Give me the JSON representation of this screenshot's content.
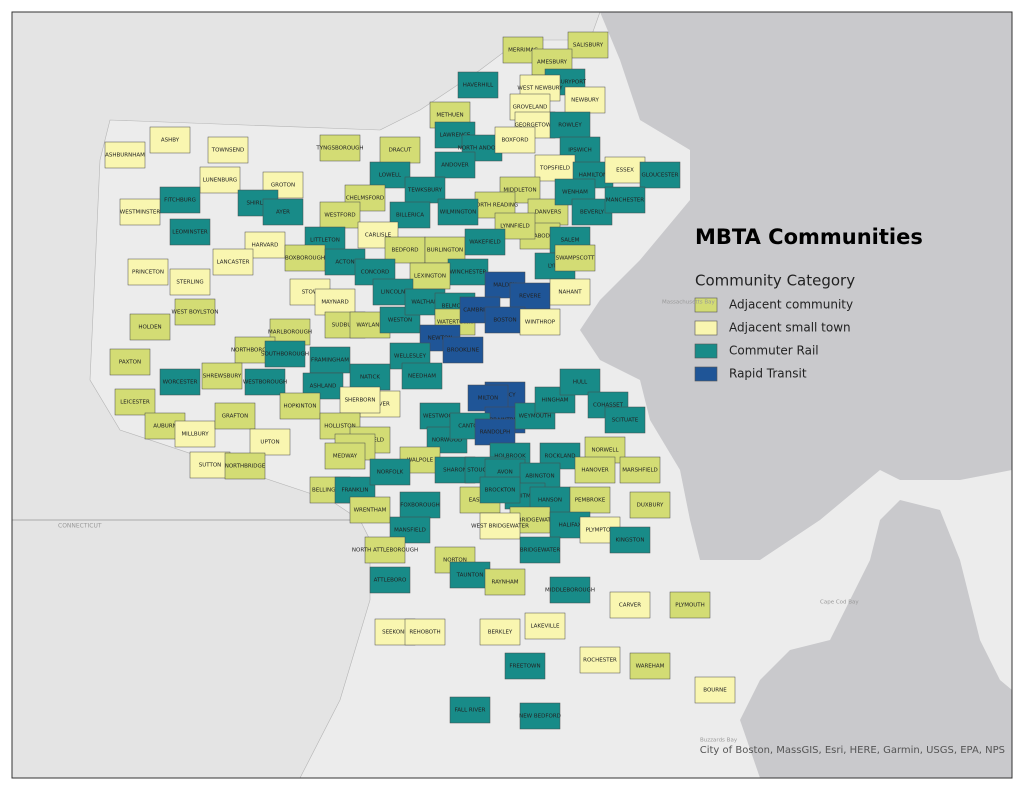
{
  "title": "MBTA Communities",
  "legend": {
    "title": "Community Category",
    "items": [
      {
        "label": "Adjacent community",
        "color": "#d3dc74"
      },
      {
        "label": "Adjacent small town",
        "color": "#f9f6b0"
      },
      {
        "label": "Commuter Rail",
        "color": "#188b88"
      },
      {
        "label": "Rapid Transit",
        "color": "#1f5597"
      }
    ]
  },
  "water_labels": [
    "Massachusetts Bay",
    "Cape Cod Bay",
    "Buzzards Bay"
  ],
  "state_label": "CONNECTICUT",
  "attribution": "City of Boston, MassGIS, Esri, HERE, Garmin, USGS, EPA, NPS",
  "towns": [
    [
      "SALISBURY",
      0
    ],
    [
      "MERRIMAC",
      0
    ],
    [
      "AMESBURY",
      0
    ],
    [
      "NEWBURYPORT",
      2
    ],
    [
      "WEST NEWBURY",
      1
    ],
    [
      "NEWBURY",
      1
    ],
    [
      "HAVERHILL",
      2
    ],
    [
      "GROVELAND",
      1
    ],
    [
      "GEORGETOWN",
      1
    ],
    [
      "ROWLEY",
      2
    ],
    [
      "METHUEN",
      0
    ],
    [
      "LAWRENCE",
      2
    ],
    [
      "NORTH ANDOVER",
      2
    ],
    [
      "BOXFORD",
      1
    ],
    [
      "IPSWICH",
      2
    ],
    [
      "DRACUT",
      0
    ],
    [
      "TYNGSBOROUGH",
      0
    ],
    [
      "ANDOVER",
      2
    ],
    [
      "TOPSFIELD",
      1
    ],
    [
      "HAMILTON",
      2
    ],
    [
      "ESSEX",
      1
    ],
    [
      "GLOUCESTER",
      2
    ],
    [
      "ASHBY",
      1
    ],
    [
      "TOWNSEND",
      1
    ],
    [
      "ASHBURNHAM",
      1
    ],
    [
      "GROTON",
      1
    ],
    [
      "LOWELL",
      2
    ],
    [
      "TEWKSBURY",
      2
    ],
    [
      "CHELMSFORD",
      0
    ],
    [
      "WESTFORD",
      0
    ],
    [
      "LUNENBURG",
      1
    ],
    [
      "FITCHBURG",
      2
    ],
    [
      "WESTMINSTER",
      1
    ],
    [
      "SHIRLEY",
      2
    ],
    [
      "AYER",
      2
    ],
    [
      "BILLERICA",
      2
    ],
    [
      "MIDDLETON",
      0
    ],
    [
      "NORTH READING",
      0
    ],
    [
      "DANVERS",
      0
    ],
    [
      "WENHAM",
      2
    ],
    [
      "BEVERLY",
      2
    ],
    [
      "MANCHESTER",
      2
    ],
    [
      "WILMINGTON",
      2
    ],
    [
      "LEOMINSTER",
      2
    ],
    [
      "LITTLETON",
      2
    ],
    [
      "CARLISLE",
      1
    ],
    [
      "HARVARD",
      1
    ],
    [
      "BOXBOROUGH",
      0
    ],
    [
      "LANCASTER",
      1
    ],
    [
      "PRINCETON",
      1
    ],
    [
      "STERLING",
      1
    ],
    [
      "BEDFORD",
      0
    ],
    [
      "BURLINGTON",
      0
    ],
    [
      "PEABODY",
      0
    ],
    [
      "LYNNFIELD",
      0
    ],
    [
      "WAKEFIELD",
      2
    ],
    [
      "SALEM",
      2
    ],
    [
      "WINCHESTER",
      2
    ],
    [
      "LEXINGTON",
      0
    ],
    [
      "ACTON",
      2
    ],
    [
      "CONCORD",
      2
    ],
    [
      "STOW",
      1
    ],
    [
      "MAYNARD",
      1
    ],
    [
      "LINCOLN",
      2
    ],
    [
      "MALDEN",
      3
    ],
    [
      "REVERE",
      3
    ],
    [
      "LYNN",
      2
    ],
    [
      "SWAMPSCOTT",
      0
    ],
    [
      "NAHANT",
      1
    ],
    [
      "WEST BOYLSTON",
      0
    ],
    [
      "HOLDEN",
      0
    ],
    [
      "SUDBURY",
      0
    ],
    [
      "WAYLAND",
      0
    ],
    [
      "WESTON",
      2
    ],
    [
      "WALTHAM",
      2
    ],
    [
      "BELMONT",
      2
    ],
    [
      "WATERTOWN",
      0
    ],
    [
      "CAMBRIDGE",
      3
    ],
    [
      "BOSTON",
      3
    ],
    [
      "WINTHROP",
      1
    ],
    [
      "MARLBOROUGH",
      0
    ],
    [
      "NEWTON",
      3
    ],
    [
      "BROOKLINE",
      3
    ],
    [
      "NORTHBOROUGH",
      0
    ],
    [
      "SOUTHBOROUGH",
      2
    ],
    [
      "FRAMINGHAM",
      2
    ],
    [
      "WELLESLEY",
      2
    ],
    [
      "NEEDHAM",
      2
    ],
    [
      "PAXTON",
      0
    ],
    [
      "WORCESTER",
      2
    ],
    [
      "SHREWSBURY",
      0
    ],
    [
      "WESTBOROUGH",
      2
    ],
    [
      "ASHLAND",
      2
    ],
    [
      "NATICK",
      2
    ],
    [
      "DOVER",
      1
    ],
    [
      "SHERBORN",
      1
    ],
    [
      "HOPKINTON",
      0
    ],
    [
      "LEICESTER",
      0
    ],
    [
      "QUINCY",
      3
    ],
    [
      "MILTON",
      3
    ],
    [
      "BRAINTREE",
      3
    ],
    [
      "WEYMOUTH",
      2
    ],
    [
      "HINGHAM",
      2
    ],
    [
      "HULL",
      2
    ],
    [
      "COHASSET",
      2
    ],
    [
      "SCITUATE",
      2
    ],
    [
      "AUBURN",
      0
    ],
    [
      "MILLBURY",
      1
    ],
    [
      "GRAFTON",
      0
    ],
    [
      "UPTON",
      1
    ],
    [
      "HOLLISTON",
      0
    ],
    [
      "MEDFIELD",
      0
    ],
    [
      "MILLIS",
      0
    ],
    [
      "WESTWOOD",
      2
    ],
    [
      "NORWOOD",
      2
    ],
    [
      "CANTON",
      2
    ],
    [
      "RANDOLPH",
      3
    ],
    [
      "HOLBROOK",
      2
    ],
    [
      "NORWELL",
      0
    ],
    [
      "ROCKLAND",
      2
    ],
    [
      "HANOVER",
      0
    ],
    [
      "MARSHFIELD",
      0
    ],
    [
      "SUTTON",
      1
    ],
    [
      "NORTHBRIDGE",
      0
    ],
    [
      "MEDWAY",
      0
    ],
    [
      "WALPOLE",
      0
    ],
    [
      "SHARON",
      2
    ],
    [
      "STOUGHTON",
      2
    ],
    [
      "AVON",
      2
    ],
    [
      "ABINGTON",
      2
    ],
    [
      "WHITMAN",
      2
    ],
    [
      "HANSON",
      2
    ],
    [
      "PEMBROKE",
      0
    ],
    [
      "DUXBURY",
      0
    ],
    [
      "BELLINGHAM",
      0
    ],
    [
      "FRANKLIN",
      2
    ],
    [
      "NORFOLK",
      2
    ],
    [
      "WRENTHAM",
      0
    ],
    [
      "FOXBOROUGH",
      2
    ],
    [
      "MANSFIELD",
      2
    ],
    [
      "EASTON",
      0
    ],
    [
      "BROCKTON",
      2
    ],
    [
      "EAST BRIDGEWATER",
      0
    ],
    [
      "WEST BRIDGEWATER",
      1
    ],
    [
      "HALIFAX",
      2
    ],
    [
      "PLYMPTON",
      1
    ],
    [
      "KINGSTON",
      2
    ],
    [
      "NORTH ATTLEBOROUGH",
      0
    ],
    [
      "NORTON",
      0
    ],
    [
      "BRIDGEWATER",
      2
    ],
    [
      "ATTLEBORO",
      2
    ],
    [
      "TAUNTON",
      2
    ],
    [
      "RAYNHAM",
      0
    ],
    [
      "MIDDLEBOROUGH",
      2
    ],
    [
      "CARVER",
      1
    ],
    [
      "PLYMOUTH",
      0
    ],
    [
      "SEEKONK",
      1
    ],
    [
      "REHOBOTH",
      1
    ],
    [
      "BERKLEY",
      1
    ],
    [
      "LAKEVILLE",
      1
    ],
    [
      "FREETOWN",
      2
    ],
    [
      "ROCHESTER",
      1
    ],
    [
      "WAREHAM",
      0
    ],
    [
      "BOURNE",
      1
    ],
    [
      "FALL RIVER",
      2
    ],
    [
      "NEW BEDFORD",
      2
    ]
  ]
}
